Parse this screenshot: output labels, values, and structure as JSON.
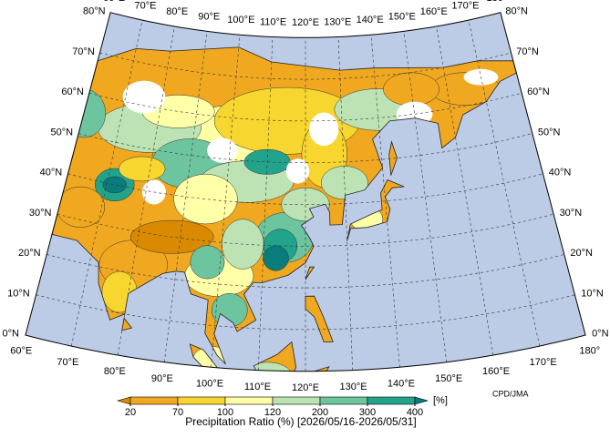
{
  "map": {
    "longitude_labels": [
      "60°E",
      "70°E",
      "80°E",
      "90°E",
      "100°E",
      "110°E",
      "120°E",
      "130°E",
      "140°E",
      "150°E",
      "160°E",
      "170°E",
      "180°"
    ],
    "latitude_labels": [
      "0°N",
      "10°N",
      "20°N",
      "30°N",
      "40°N",
      "50°N",
      "60°N",
      "70°N",
      "80°N"
    ],
    "colorbar": {
      "ticks": [
        20,
        70,
        100,
        120,
        200,
        300,
        400
      ],
      "colors": [
        "#d98a00",
        "#f0a820",
        "#f7d630",
        "#ffffa8",
        "#bde3b4",
        "#6cc59e",
        "#22a38c",
        "#0b7c7c"
      ],
      "unit": "[%]"
    },
    "caption": "Precipitation Ratio (%) [2026/05/16-2026/05/31]",
    "credit": "CPD/JMA"
  }
}
